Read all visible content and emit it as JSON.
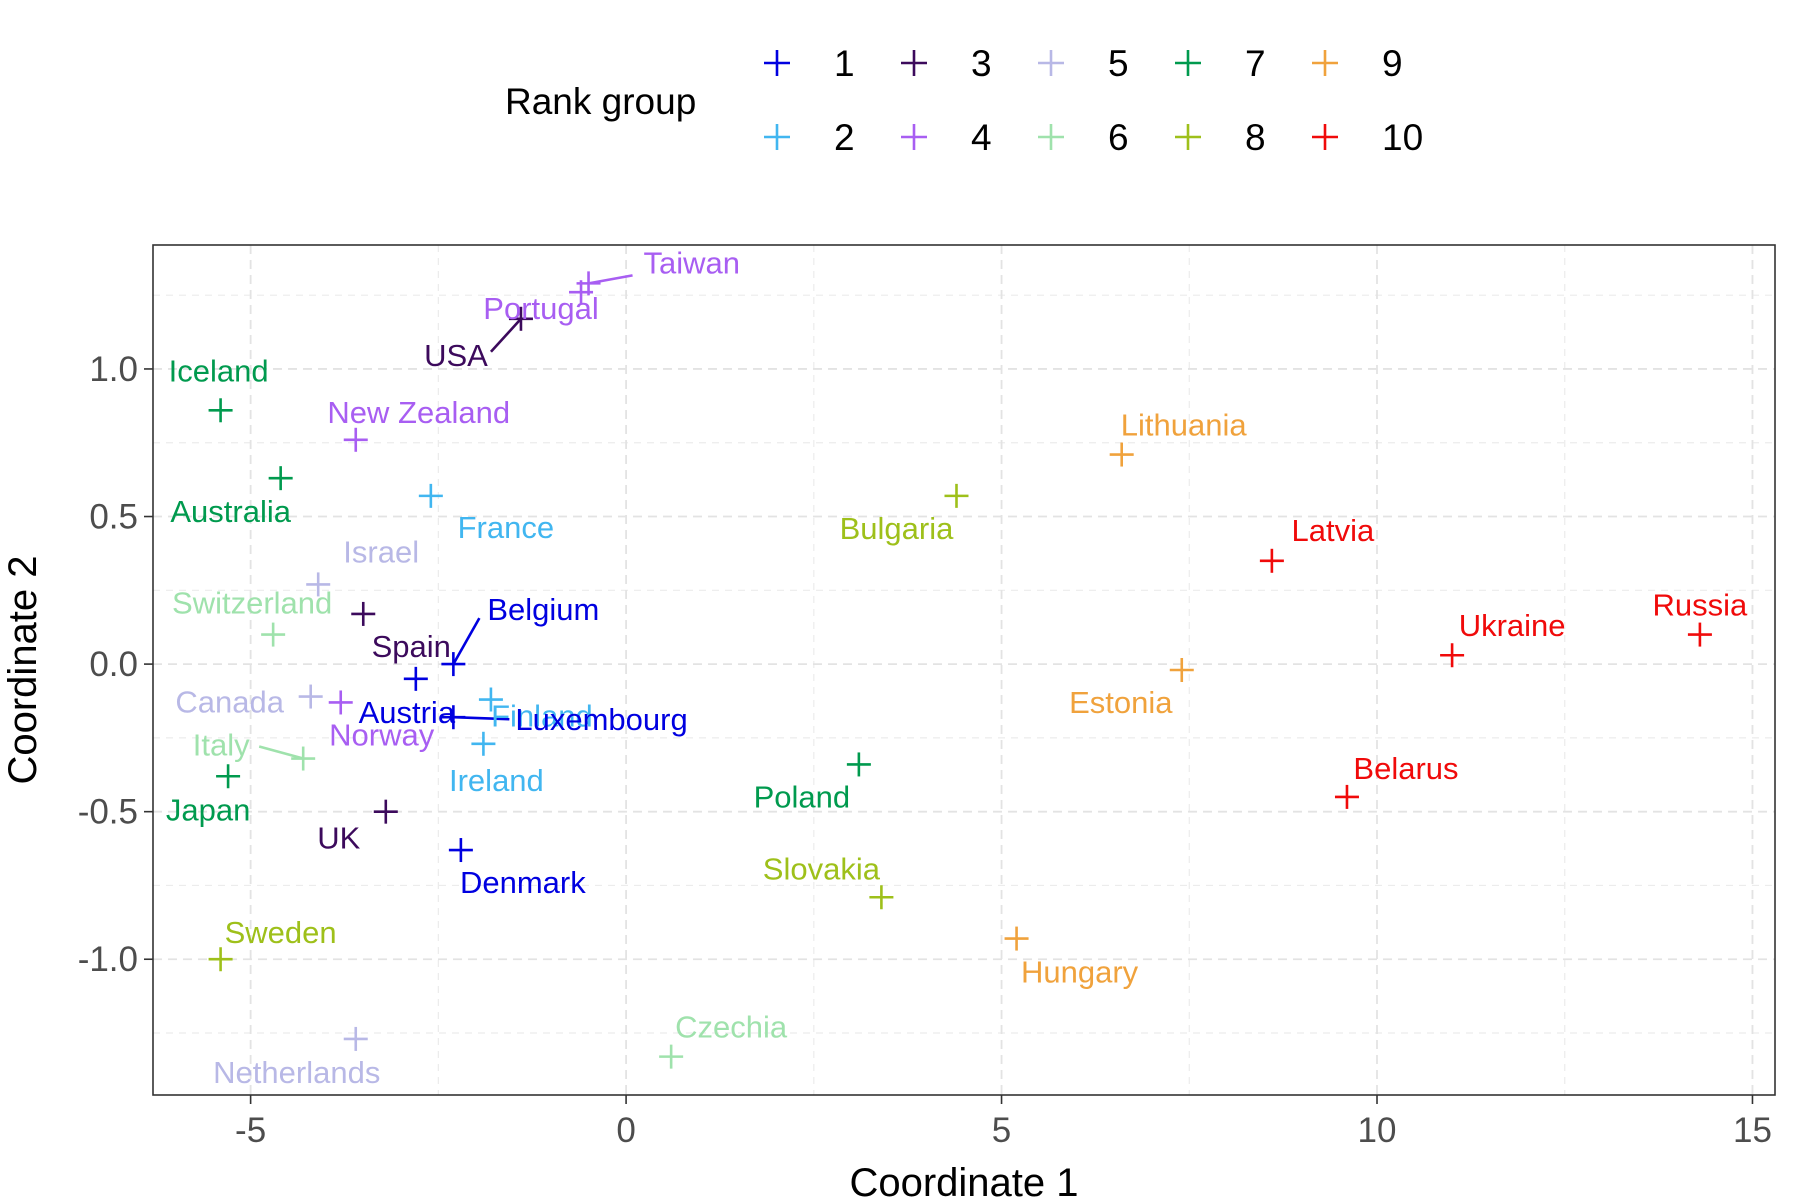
{
  "chart_data": {
    "type": "scatter",
    "xlabel": "Coordinate 1",
    "ylabel": "Coordinate 2",
    "xlim": [
      -6.3,
      15.3
    ],
    "ylim": [
      -1.46,
      1.42
    ],
    "x_ticks": [
      -5,
      0,
      5,
      10,
      15
    ],
    "x_tick_labels": [
      "-5",
      "0",
      "5",
      "10",
      "15"
    ],
    "y_ticks": [
      -1.0,
      -0.5,
      0.0,
      0.5,
      1.0
    ],
    "y_tick_labels": [
      "-1.0",
      "-0.5",
      "0.0",
      "0.5",
      "1.0"
    ],
    "grid": true,
    "legend": {
      "title": "Rank group",
      "placement": "top",
      "entries": [
        {
          "group": 1,
          "label": "1",
          "color": "#0000e0"
        },
        {
          "group": 2,
          "label": "2",
          "color": "#41b6f0"
        },
        {
          "group": 3,
          "label": "3",
          "color": "#3c0a5c"
        },
        {
          "group": 4,
          "label": "4",
          "color": "#a85ef2"
        },
        {
          "group": 5,
          "label": "5",
          "color": "#b8b8e6"
        },
        {
          "group": 6,
          "label": "6",
          "color": "#9fe2ac"
        },
        {
          "group": 7,
          "label": "7",
          "color": "#009a4e"
        },
        {
          "group": 8,
          "label": "8",
          "color": "#9ec01a"
        },
        {
          "group": 9,
          "label": "9",
          "color": "#f0a23c"
        },
        {
          "group": 10,
          "label": "10",
          "color": "#f00a0a"
        }
      ]
    },
    "points": [
      {
        "name": "Taiwan",
        "x": -0.5,
        "y": 1.29,
        "group": 4
      },
      {
        "name": "Portugal",
        "x": -0.6,
        "y": 1.26,
        "group": 4
      },
      {
        "name": "USA",
        "x": -1.4,
        "y": 1.17,
        "group": 3
      },
      {
        "name": "Iceland",
        "x": -5.4,
        "y": 0.86,
        "group": 7
      },
      {
        "name": "New Zealand",
        "x": -3.6,
        "y": 0.76,
        "group": 4
      },
      {
        "name": "Australia",
        "x": -4.6,
        "y": 0.63,
        "group": 7
      },
      {
        "name": "France",
        "x": -2.6,
        "y": 0.57,
        "group": 2
      },
      {
        "name": "Israel",
        "x": -4.1,
        "y": 0.27,
        "group": 5
      },
      {
        "name": "Spain",
        "x": -3.5,
        "y": 0.17,
        "group": 3
      },
      {
        "name": "Switzerland",
        "x": -4.7,
        "y": 0.1,
        "group": 6
      },
      {
        "name": "Belgium",
        "x": -2.3,
        "y": 0.0,
        "group": 1
      },
      {
        "name": "Canada",
        "x": -4.2,
        "y": -0.11,
        "group": 5
      },
      {
        "name": "Austria",
        "x": -2.8,
        "y": -0.05,
        "group": 1
      },
      {
        "name": "Finland",
        "x": -1.8,
        "y": -0.12,
        "group": 2
      },
      {
        "name": "Luxembourg",
        "x": -2.3,
        "y": -0.18,
        "group": 1
      },
      {
        "name": "Norway",
        "x": -3.8,
        "y": -0.13,
        "group": 4
      },
      {
        "name": "Ireland",
        "x": -1.9,
        "y": -0.27,
        "group": 2
      },
      {
        "name": "Italy",
        "x": -4.3,
        "y": -0.32,
        "group": 6
      },
      {
        "name": "Japan",
        "x": -5.3,
        "y": -0.38,
        "group": 7
      },
      {
        "name": "UK",
        "x": -3.2,
        "y": -0.5,
        "group": 3
      },
      {
        "name": "Denmark",
        "x": -2.2,
        "y": -0.63,
        "group": 1
      },
      {
        "name": "Sweden",
        "x": -5.4,
        "y": -1.0,
        "group": 8
      },
      {
        "name": "Netherlands",
        "x": -3.6,
        "y": -1.27,
        "group": 5
      },
      {
        "name": "Czechia",
        "x": 0.6,
        "y": -1.33,
        "group": 6
      },
      {
        "name": "Bulgaria",
        "x": 4.4,
        "y": 0.57,
        "group": 8
      },
      {
        "name": "Poland",
        "x": 3.1,
        "y": -0.34,
        "group": 7
      },
      {
        "name": "Slovakia",
        "x": 3.4,
        "y": -0.79,
        "group": 8
      },
      {
        "name": "Hungary",
        "x": 5.2,
        "y": -0.93,
        "group": 9
      },
      {
        "name": "Lithuania",
        "x": 6.6,
        "y": 0.71,
        "group": 9
      },
      {
        "name": "Estonia",
        "x": 7.4,
        "y": -0.02,
        "group": 9
      },
      {
        "name": "Latvia",
        "x": 8.6,
        "y": 0.35,
        "group": 10
      },
      {
        "name": "Ukraine",
        "x": 11.0,
        "y": 0.03,
        "group": 10
      },
      {
        "name": "Belarus",
        "x": 9.6,
        "y": -0.45,
        "group": 10
      },
      {
        "name": "Russia",
        "x": 14.3,
        "y": 0.1,
        "group": 10
      }
    ]
  }
}
